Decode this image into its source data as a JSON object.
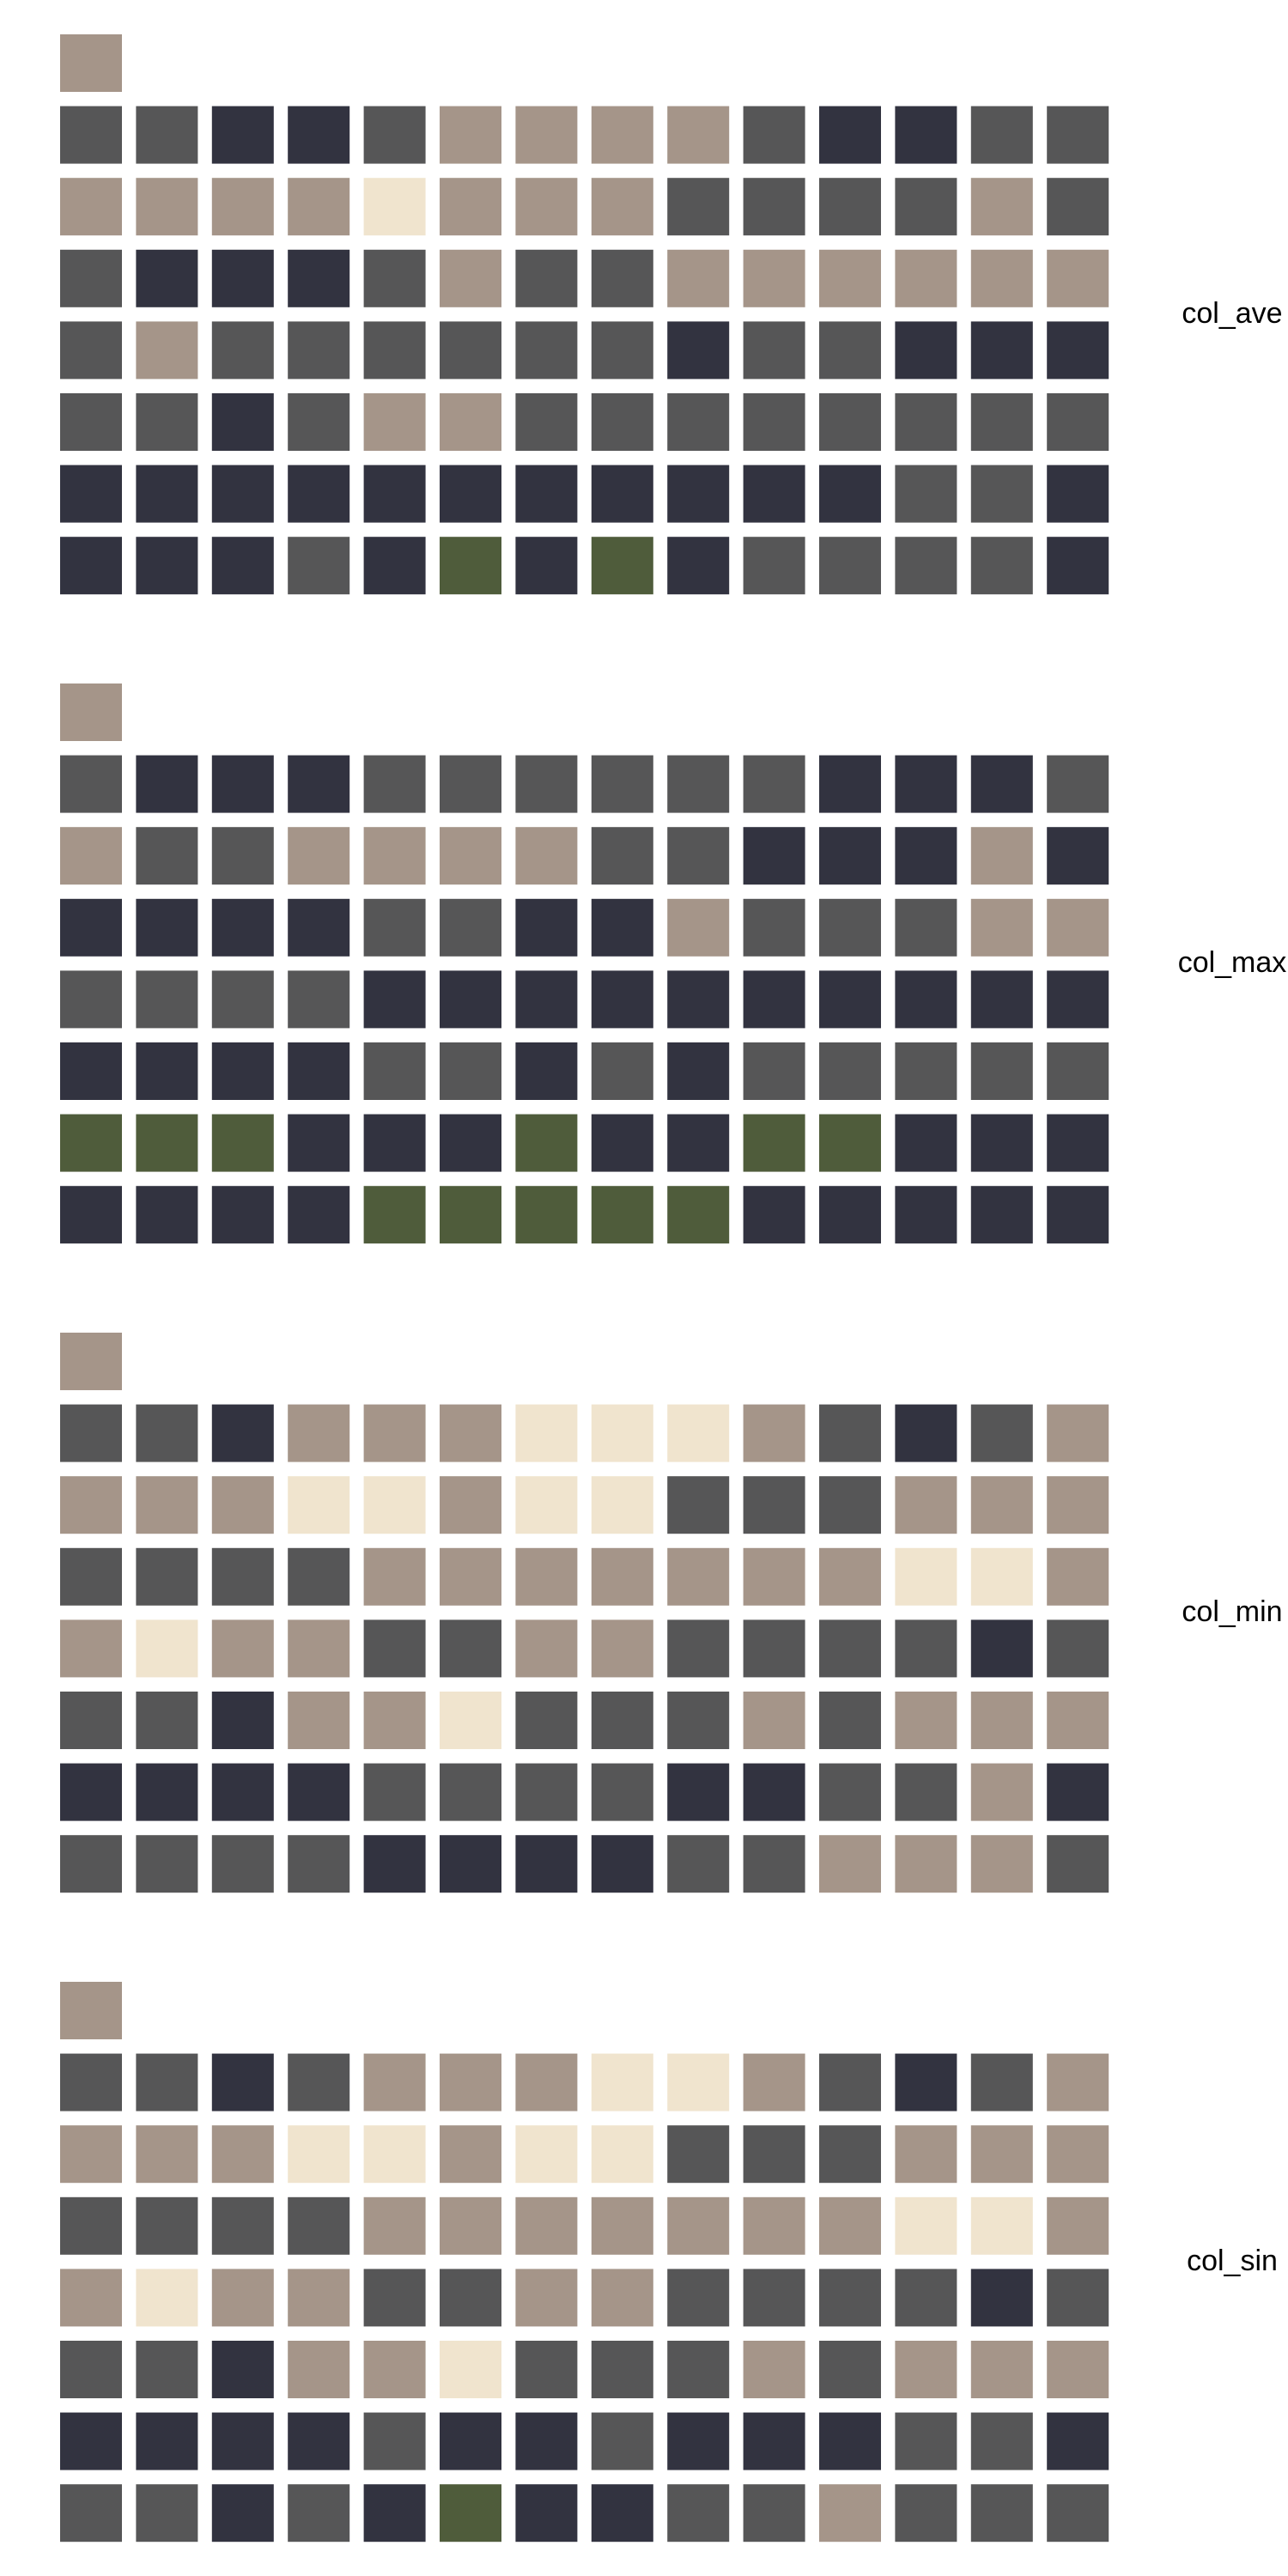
{
  "chart_data": {
    "type": "heatmap",
    "palette": {
      "A": "#a59589",
      "G": "#565657",
      "D": "#323340",
      "C": "#f0e4ce",
      "V": "#4f5c3b"
    },
    "panels": [
      {
        "label": "col_ave",
        "header": "A",
        "rows": [
          "GGDDGAAAAGDDGG",
          "AAAACAAAGGGGAG",
          "GDDDGAGGAAAAAA",
          "GAGGGGGGDGGDDD",
          "GGDGAAGGGGGGGG",
          "DDDDDDDDDDDGGD",
          "DDDGDVDVDGGGGD"
        ]
      },
      {
        "label": "col_max",
        "header": "A",
        "rows": [
          "GDDDGGGGGGDDDG",
          "AGGAAAAGGDDDAD",
          "DDDDGGDDAGGGAA",
          "GGGGDDDDDDDDDD",
          "DDDDGGDGDGGGGG",
          "VVVDDDVDDVVDDD",
          "DDDDVVVVVDDDDD"
        ]
      },
      {
        "label": "col_min",
        "header": "A",
        "rows": [
          "GGDAAACCCAGDGA",
          "AAACCACCGGGAAA",
          "GGGGAAAAAAACCA",
          "ACAAGGAAGGGGDG",
          "GGDAACGGGAGAAA",
          "DDDDGGGGDDGGAD",
          "GGGGDDDDGGAAAG"
        ]
      },
      {
        "label": "col_sin",
        "header": "A",
        "rows": [
          "GGDGAAACCAGDGA",
          "AAACCACCGGGAAA",
          "GGGGAAAAAAACCA",
          "ACAAGGAAGGGGDG",
          "GGDAACGGGAGAAA",
          "DDDDGDDGDDDGGD",
          "GGDGDVDDGGAGGG"
        ]
      }
    ]
  }
}
